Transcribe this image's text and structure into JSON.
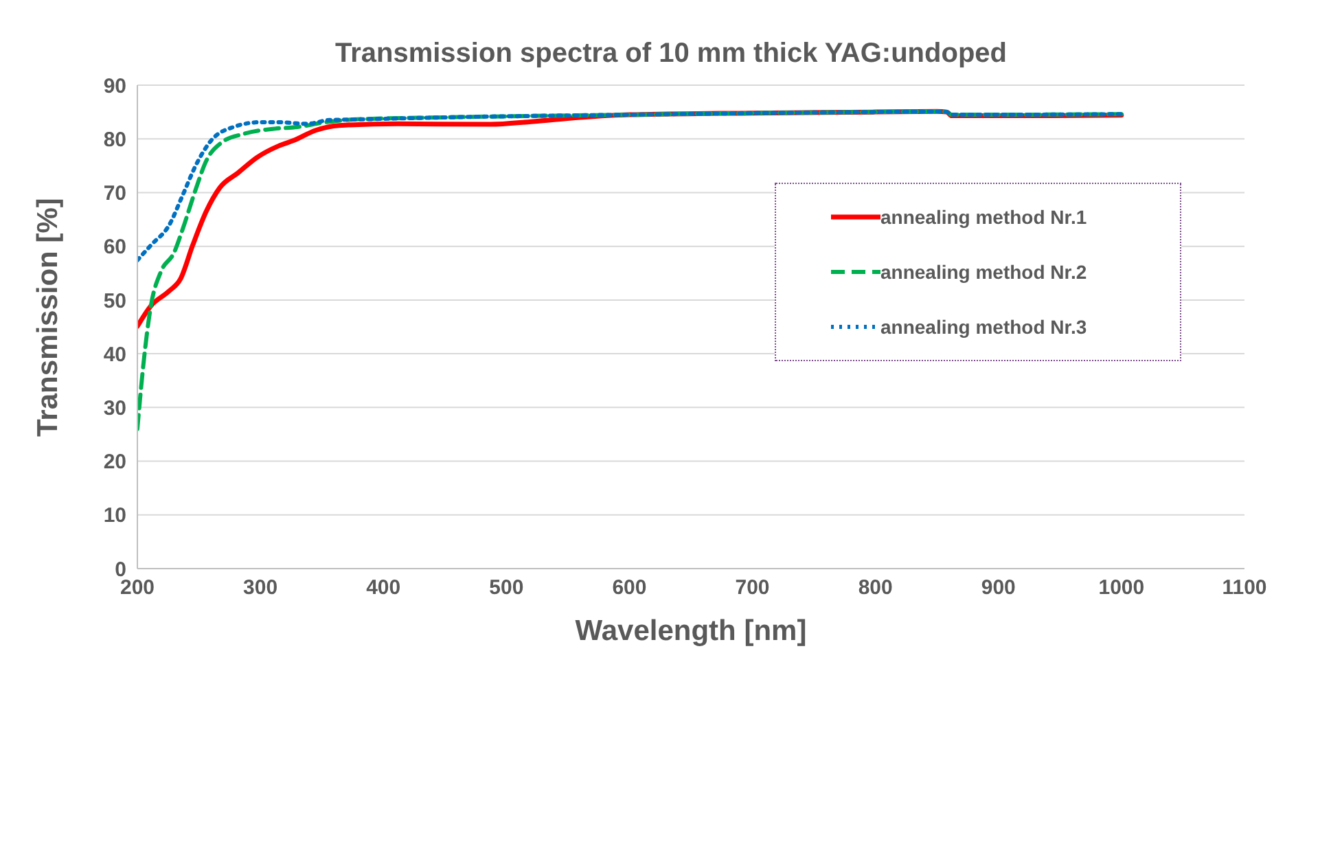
{
  "chart_data": {
    "type": "line",
    "title": "Transmission spectra of 10 mm thick YAG:undoped",
    "xlabel": "Wavelength [nm]",
    "ylabel": "Transmission [%]",
    "xlim": [
      200,
      1100
    ],
    "xticks": [
      200,
      300,
      400,
      500,
      600,
      700,
      800,
      900,
      1000,
      1100
    ],
    "ylim": [
      0,
      90
    ],
    "yticks": [
      0,
      10,
      20,
      30,
      40,
      50,
      60,
      70,
      80,
      90
    ],
    "grid": "y",
    "legend": "right",
    "marker": "none",
    "series": [
      {
        "name": "annealing method Nr.1",
        "color": "#ff0000",
        "line_style": "solid",
        "x": [
          200,
          211,
          226,
          235,
          245,
          256,
          267,
          282,
          297,
          315,
          327,
          345,
          364,
          412,
          487,
          520,
          560,
          600,
          700,
          800,
          850,
          858,
          862,
          900,
          1000
        ],
        "values": [
          45.1,
          48.9,
          51.7,
          53.9,
          60.2,
          66.5,
          70.9,
          73.7,
          76.5,
          78.7,
          79.7,
          81.6,
          82.5,
          82.8,
          82.7,
          83.2,
          84,
          84.5,
          84.8,
          85,
          85.1,
          85,
          84.3,
          84.3,
          84.4
        ]
      },
      {
        "name": "annealing method Nr.2",
        "color": "#00b050",
        "line_style": "dashed",
        "x": [
          200,
          205,
          211,
          219,
          230,
          237,
          247,
          256,
          269,
          286,
          312,
          330,
          353,
          375,
          449,
          600,
          700,
          800,
          850,
          858,
          862,
          900,
          1000
        ],
        "values": [
          26,
          38.2,
          48.9,
          55.2,
          58.9,
          63.3,
          70.3,
          75.9,
          79.4,
          80.9,
          81.9,
          82.2,
          83.1,
          83.6,
          84,
          84.5,
          84.8,
          85,
          85.1,
          85,
          84.5,
          84.5,
          84.6
        ]
      },
      {
        "name": "annealing method Nr.3",
        "color": "#0070c0",
        "line_style": "dotted",
        "x": [
          200,
          211,
          226,
          237,
          248,
          260,
          278,
          300,
          315,
          338,
          356,
          375,
          449,
          600,
          700,
          800,
          850,
          858,
          862,
          900,
          1000
        ],
        "values": [
          57.4,
          60.2,
          64,
          69.6,
          75.3,
          79.7,
          82.2,
          83.1,
          83.1,
          82.8,
          83.5,
          83.6,
          84,
          84.5,
          84.8,
          85,
          85.1,
          85,
          84.5,
          84.5,
          84.6
        ]
      }
    ]
  }
}
